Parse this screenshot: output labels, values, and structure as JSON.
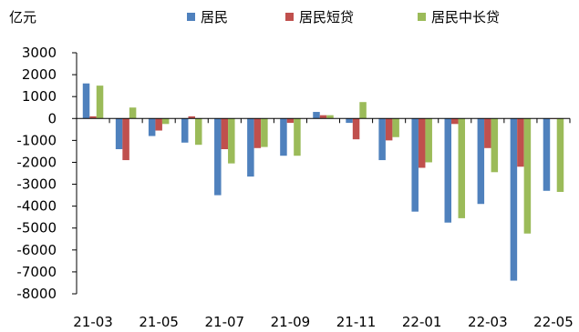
{
  "chart_data": {
    "type": "bar",
    "unit_label": "亿元",
    "categories": [
      "21-03",
      "21-04",
      "21-05",
      "21-06",
      "21-07",
      "21-08",
      "21-09",
      "21-10",
      "21-11",
      "21-12",
      "22-01",
      "22-02",
      "22-03",
      "22-04",
      "22-05"
    ],
    "tick_labels": [
      "21-03",
      "21-05",
      "21-07",
      "21-09",
      "21-11",
      "22-01",
      "22-03",
      "22-05"
    ],
    "series": [
      {
        "name": "居民",
        "color": "#4F81BD",
        "values": [
          1600,
          -1400,
          -800,
          -1100,
          -3500,
          -2650,
          -1700,
          300,
          -200,
          -1900,
          -4250,
          -4750,
          -3900,
          -7400,
          -3300
        ]
      },
      {
        "name": "居民短贷",
        "color": "#C0504D",
        "values": [
          100,
          -1900,
          -550,
          100,
          -1400,
          -1350,
          -200,
          150,
          -950,
          -1000,
          -2250,
          -250,
          -1350,
          -2200,
          0
        ]
      },
      {
        "name": "居民中长贷",
        "color": "#9BBB59",
        "values": [
          1500,
          500,
          -250,
          -1200,
          -2050,
          -1300,
          -1700,
          150,
          750,
          -850,
          -2000,
          -4550,
          -2450,
          -5250,
          -3350
        ]
      }
    ],
    "ylim": [
      -8000,
      3000
    ],
    "yticks": [
      3000,
      2000,
      1000,
      0,
      -1000,
      -2000,
      -3000,
      -4000,
      -5000,
      -6000,
      -7000,
      -8000
    ],
    "grid": false,
    "legend_position": "top"
  }
}
